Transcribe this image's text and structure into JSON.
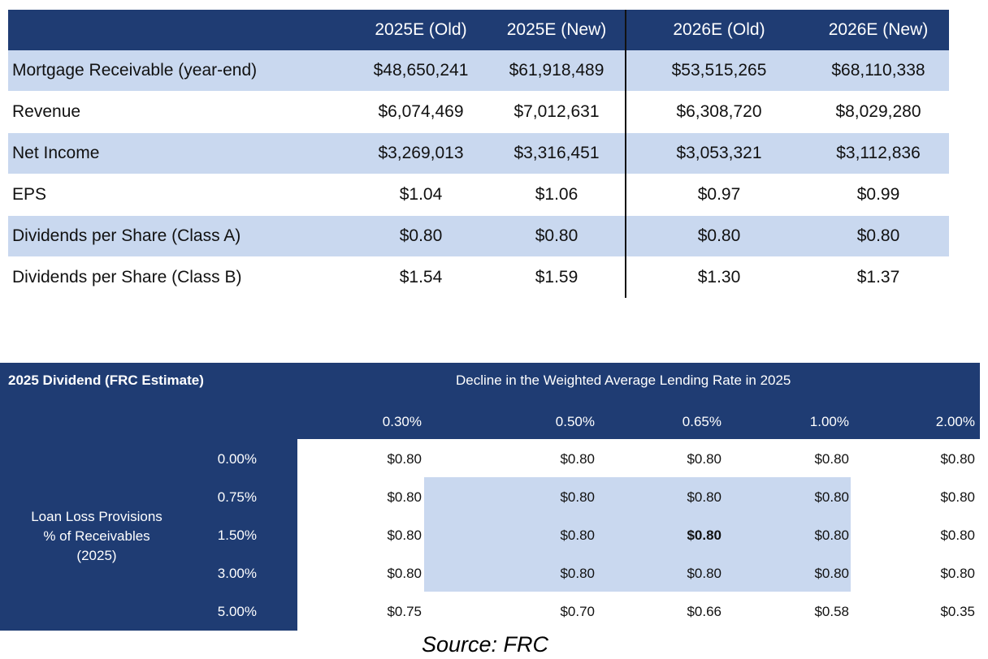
{
  "top_table": {
    "headers": [
      "",
      "2025E (Old)",
      "2025E (New)",
      "2026E (Old)",
      "2026E (New)"
    ],
    "rows": [
      {
        "label": "Mortgage Receivable (year-end)",
        "values": [
          "$48,650,241",
          "$61,918,489",
          "$53,515,265",
          "$68,110,338"
        ]
      },
      {
        "label": "Revenue",
        "values": [
          "$6,074,469",
          "$7,012,631",
          "$6,308,720",
          "$8,029,280"
        ]
      },
      {
        "label": "Net Income",
        "values": [
          "$3,269,013",
          "$3,316,451",
          "$3,053,321",
          "$3,112,836"
        ]
      },
      {
        "label": "EPS",
        "values": [
          "$1.04",
          "$1.06",
          "$0.97",
          "$0.99"
        ]
      },
      {
        "label": "Dividends per Share (Class A)",
        "values": [
          "$0.80",
          "$0.80",
          "$0.80",
          "$0.80"
        ]
      },
      {
        "label": "Dividends per Share (Class B)",
        "values": [
          "$1.54",
          "$1.59",
          "$1.30",
          "$1.37"
        ]
      }
    ]
  },
  "sensitivity_table": {
    "title": "2025 Dividend (FRC Estimate)",
    "column_axis_label": "Decline in the Weighted Average Lending Rate in 2025",
    "row_axis_label_lines": [
      "Loan Loss Provisions",
      "% of Receivables",
      "(2025)"
    ],
    "columns": [
      "0.30%",
      "0.50%",
      "0.65%",
      "1.00%",
      "2.00%"
    ],
    "rows": [
      {
        "label": "0.00%",
        "values": [
          "$0.80",
          "$0.80",
          "$0.80",
          "$0.80",
          "$0.80"
        ]
      },
      {
        "label": "0.75%",
        "values": [
          "$0.80",
          "$0.80",
          "$0.80",
          "$0.80",
          "$0.80"
        ]
      },
      {
        "label": "1.50%",
        "values": [
          "$0.80",
          "$0.80",
          "$0.80",
          "$0.80",
          "$0.80"
        ]
      },
      {
        "label": "3.00%",
        "values": [
          "$0.80",
          "$0.80",
          "$0.80",
          "$0.80",
          "$0.80"
        ]
      },
      {
        "label": "5.00%",
        "values": [
          "$0.75",
          "$0.70",
          "$0.66",
          "$0.58",
          "$0.35"
        ]
      }
    ],
    "highlighted_cell": {
      "row": 2,
      "col": 2
    }
  },
  "source": "Source: FRC",
  "colors": {
    "navy": "#1f3c73",
    "band": "#c9d8ef"
  }
}
